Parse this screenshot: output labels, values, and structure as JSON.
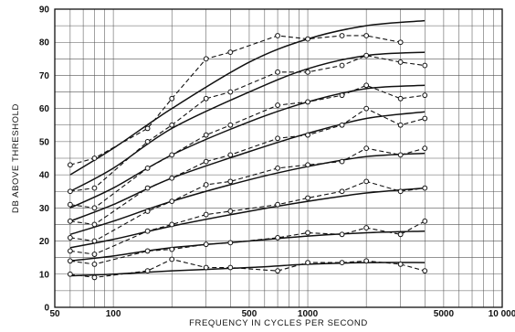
{
  "chart_data": {
    "type": "line",
    "xscale": "log",
    "xlim": [
      50,
      10000
    ],
    "ylim": [
      0,
      90
    ],
    "xlabel": "FREQUENCY IN CYCLES PER SECOND",
    "ylabel": "DB ABOVE THRESHOLD",
    "x_ticks": [
      "50",
      "100",
      "500",
      "1000",
      "5000",
      "10 000"
    ],
    "y_ticks": [
      "0",
      "10",
      "20",
      "30",
      "40",
      "50",
      "60",
      "70",
      "80",
      "90"
    ],
    "grid": true,
    "smooth_curves": [
      {
        "x": [
          60,
          100,
          200,
          500,
          1000,
          2000,
          4000
        ],
        "y": [
          9.5,
          10,
          11,
          12,
          13,
          13.5,
          13.5
        ]
      },
      {
        "x": [
          60,
          100,
          200,
          500,
          1000,
          2000,
          4000
        ],
        "y": [
          14,
          15.5,
          18,
          20,
          21.5,
          22.5,
          23
        ]
      },
      {
        "x": [
          60,
          100,
          200,
          500,
          1000,
          2000,
          4000
        ],
        "y": [
          18,
          20.5,
          24.5,
          29,
          32,
          34.5,
          36
        ]
      },
      {
        "x": [
          60,
          100,
          200,
          500,
          1000,
          2000,
          4000
        ],
        "y": [
          22,
          26,
          32,
          38.5,
          42.5,
          45.5,
          46.5
        ]
      },
      {
        "x": [
          60,
          100,
          200,
          500,
          1000,
          2000,
          4000
        ],
        "y": [
          26,
          31,
          39,
          47,
          52.5,
          57,
          59
        ]
      },
      {
        "x": [
          60,
          100,
          200,
          500,
          1000,
          2000,
          4000
        ],
        "y": [
          30,
          36,
          46,
          56,
          62,
          66,
          67
        ]
      },
      {
        "x": [
          60,
          100,
          200,
          500,
          1000,
          2000,
          4000
        ],
        "y": [
          35,
          42,
          54,
          65,
          72,
          76,
          77
        ]
      },
      {
        "x": [
          60,
          100,
          200,
          500,
          1000,
          2000,
          4000
        ],
        "y": [
          40,
          48,
          60,
          74,
          81,
          85,
          86.5
        ]
      }
    ],
    "measured_series": [
      {
        "x": [
          60,
          80,
          150,
          200,
          300,
          400,
          700,
          1000,
          1500,
          2000,
          3000,
          4000
        ],
        "y": [
          10,
          9,
          11,
          14.5,
          12,
          12,
          11,
          13.5,
          13.5,
          14,
          13,
          11
        ]
      },
      {
        "x": [
          60,
          80,
          150,
          200,
          300,
          400,
          700,
          1000,
          1500,
          2000,
          3000,
          4000
        ],
        "y": [
          14,
          13,
          17,
          17.5,
          19,
          19.5,
          21,
          22.5,
          22,
          24,
          22,
          26
        ]
      },
      {
        "x": [
          60,
          80,
          150,
          200,
          300,
          400,
          700,
          1000,
          1500,
          2000,
          3000,
          4000
        ],
        "y": [
          17,
          16,
          23,
          25,
          28,
          29,
          31,
          33,
          35,
          38,
          35,
          36
        ]
      },
      {
        "x": [
          60,
          80,
          150,
          200,
          300,
          400,
          700,
          1000,
          1500,
          2000,
          3000,
          4000
        ],
        "y": [
          21,
          20,
          29,
          32,
          37,
          38,
          42,
          43,
          44,
          48,
          46,
          48
        ]
      },
      {
        "x": [
          60,
          80,
          150,
          200,
          300,
          400,
          700,
          1000,
          1500,
          2000,
          3000,
          4000
        ],
        "y": [
          26,
          25,
          36,
          39,
          44,
          46,
          51,
          52,
          55,
          60,
          55,
          57
        ]
      },
      {
        "x": [
          60,
          80,
          150,
          200,
          300,
          400,
          700,
          1000,
          1500,
          2000,
          3000,
          4000
        ],
        "y": [
          31,
          30,
          42,
          46,
          52,
          55,
          61,
          62,
          64,
          67,
          63,
          64
        ]
      },
      {
        "x": [
          60,
          80,
          150,
          200,
          300,
          400,
          700,
          1000,
          1500,
          2000,
          3000,
          4000
        ],
        "y": [
          35,
          36,
          50,
          55,
          63,
          65,
          71,
          71,
          73,
          76,
          74,
          73
        ]
      },
      {
        "x": [
          60,
          80,
          150,
          200,
          300,
          400,
          700,
          1000,
          1500,
          2000,
          3000
        ],
        "y": [
          43,
          45,
          54,
          63,
          75,
          77,
          82,
          81,
          82,
          82,
          80
        ]
      }
    ]
  }
}
